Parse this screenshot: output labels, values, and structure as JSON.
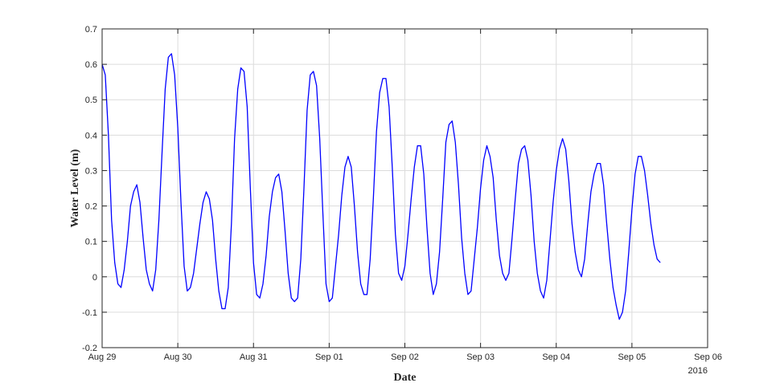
{
  "chart_data": {
    "type": "line",
    "xlabel": "Date",
    "ylabel": "Water Level (m)",
    "year_label": "2016",
    "x_tick_labels": [
      "Aug 29",
      "Aug 30",
      "Aug 31",
      "Sep 01",
      "Sep 02",
      "Sep 03",
      "Sep 04",
      "Sep 05",
      "Sep 06"
    ],
    "y_tick_labels": [
      "-0.2",
      "-0.1",
      "0",
      "0.1",
      "0.2",
      "0.3",
      "0.4",
      "0.5",
      "0.6",
      "0.7"
    ],
    "xlim": [
      "2016-08-29 00:00",
      "2016-09-06 00:00"
    ],
    "ylim": [
      -0.2,
      0.7
    ],
    "grid": true,
    "line_color": "#0000ff",
    "x_time_step_hours": 1,
    "series": [
      {
        "values": [
          0.6,
          0.57,
          0.4,
          0.16,
          0.04,
          -0.02,
          -0.03,
          0.02,
          0.1,
          0.2,
          0.24,
          0.26,
          0.21,
          0.11,
          0.02,
          -0.02,
          -0.04,
          0.02,
          0.16,
          0.35,
          0.53,
          0.62,
          0.63,
          0.57,
          0.42,
          0.21,
          0.03,
          -0.04,
          -0.03,
          0.01,
          0.08,
          0.15,
          0.21,
          0.24,
          0.22,
          0.16,
          0.05,
          -0.04,
          -0.09,
          -0.09,
          -0.03,
          0.15,
          0.39,
          0.53,
          0.59,
          0.58,
          0.48,
          0.25,
          0.04,
          -0.05,
          -0.06,
          -0.02,
          0.06,
          0.17,
          0.24,
          0.28,
          0.29,
          0.24,
          0.13,
          0.01,
          -0.06,
          -0.07,
          -0.06,
          0.05,
          0.25,
          0.47,
          0.57,
          0.58,
          0.54,
          0.39,
          0.18,
          -0.02,
          -0.07,
          -0.06,
          0.03,
          0.12,
          0.23,
          0.31,
          0.34,
          0.31,
          0.2,
          0.07,
          -0.02,
          -0.05,
          -0.05,
          0.05,
          0.22,
          0.41,
          0.52,
          0.56,
          0.56,
          0.48,
          0.31,
          0.12,
          0.01,
          -0.01,
          0.03,
          0.12,
          0.22,
          0.31,
          0.37,
          0.37,
          0.29,
          0.14,
          0.01,
          -0.05,
          -0.02,
          0.07,
          0.22,
          0.38,
          0.43,
          0.44,
          0.38,
          0.26,
          0.11,
          0.01,
          -0.05,
          -0.04,
          0.05,
          0.14,
          0.25,
          0.33,
          0.37,
          0.34,
          0.28,
          0.16,
          0.06,
          0.01,
          -0.01,
          0.01,
          0.11,
          0.22,
          0.32,
          0.36,
          0.37,
          0.33,
          0.23,
          0.1,
          0.01,
          -0.04,
          -0.06,
          -0.01,
          0.1,
          0.21,
          0.3,
          0.36,
          0.39,
          0.36,
          0.27,
          0.15,
          0.07,
          0.02,
          0.0,
          0.05,
          0.15,
          0.24,
          0.29,
          0.32,
          0.32,
          0.26,
          0.15,
          0.05,
          -0.03,
          -0.08,
          -0.12,
          -0.1,
          -0.04,
          0.07,
          0.19,
          0.29,
          0.34,
          0.34,
          0.3,
          0.23,
          0.15,
          0.09,
          0.05,
          0.04
        ]
      }
    ]
  }
}
